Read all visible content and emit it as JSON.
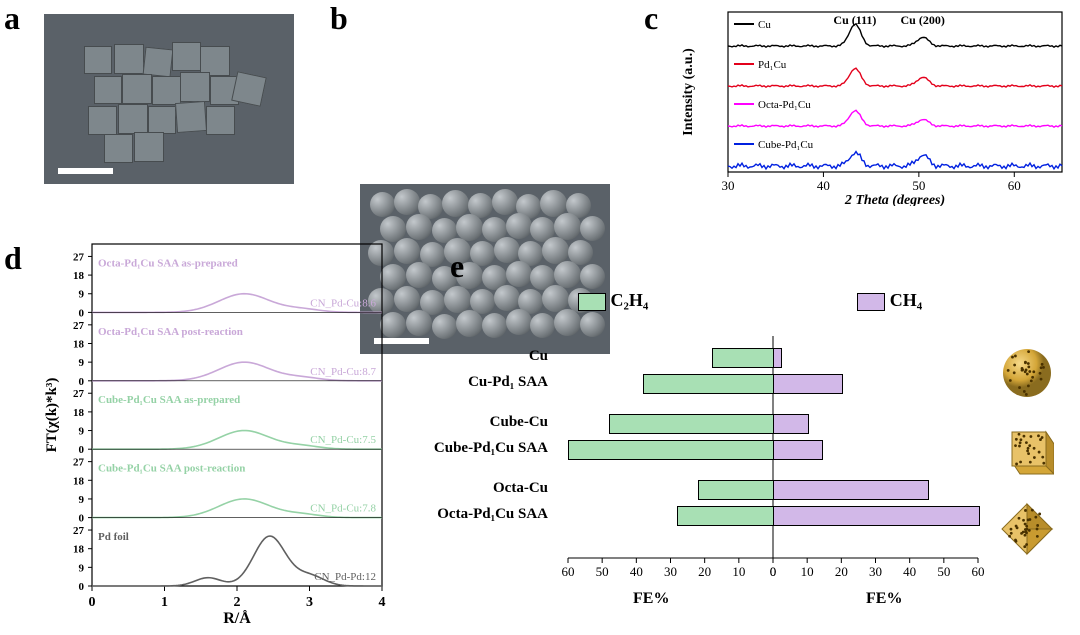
{
  "panels": {
    "a": {
      "label": "a"
    },
    "b": {
      "label": "b"
    },
    "c": {
      "label": "c",
      "chart": {
        "type": "line",
        "xlabel": "2 Theta (degrees)",
        "ylabel": "Intensity (a.u.)",
        "xlabel_style": "italic",
        "xlim": [
          30,
          65
        ],
        "xtick_step": 10,
        "peak_labels": [
          {
            "text": "Cu (111)",
            "x": 43.3
          },
          {
            "text": "Cu (200)",
            "x": 50.4
          }
        ],
        "series": [
          {
            "name": "Cu",
            "color": "#000000",
            "offset": 3,
            "peaks": [
              {
                "x": 43.3,
                "h": 10
              },
              {
                "x": 50.4,
                "h": 4
              }
            ]
          },
          {
            "name": "Pd₁Cu",
            "color": "#e3001b",
            "offset": 2,
            "peaks": [
              {
                "x": 43.3,
                "h": 8
              },
              {
                "x": 50.4,
                "h": 4
              }
            ]
          },
          {
            "name": "Octa-Pd₁Cu",
            "color": "#ff00ff",
            "offset": 1,
            "peaks": [
              {
                "x": 43.3,
                "h": 7
              },
              {
                "x": 50.4,
                "h": 3
              }
            ]
          },
          {
            "name": "Cube-Pd₁Cu",
            "color": "#0020e0",
            "offset": 0,
            "peaks": [
              {
                "x": 43.3,
                "h": 6
              },
              {
                "x": 50.4,
                "h": 5
              }
            ],
            "noisy": true
          }
        ],
        "background_color": "#ffffff",
        "axis_fontsize": 14
      }
    },
    "d": {
      "label": "d",
      "chart": {
        "type": "line",
        "xlabel": "R/Å",
        "ylabel": "FT(χ(k)*k³)",
        "xlim": [
          0,
          4
        ],
        "xtick_step": 1,
        "ytick_values": [
          0,
          9,
          18,
          27
        ],
        "n_stacks": 5,
        "label_fontsize": 11,
        "series": [
          {
            "name": "Octa-Pd₁Cu SAA as-prepared",
            "cn": "CN_Pd-Cu:8.6",
            "color": "#c9a8d8",
            "offset": 4
          },
          {
            "name": "Octa-Pd₁Cu SAA post-reaction",
            "cn": "CN_Pd-Cu:8.7",
            "color": "#c9a8d8",
            "offset": 3
          },
          {
            "name": "Cube-Pd₁Cu SAA as-prepared",
            "cn": "CN_Pd-Cu:7.5",
            "color": "#95d2a6",
            "offset": 2
          },
          {
            "name": "Cube-Pd₁Cu SAA post-reaction",
            "cn": "CN_Pd-Cu:7.8",
            "color": "#95d2a6",
            "offset": 1
          },
          {
            "name": "Pd foil",
            "cn": "CN_Pd-Pd:12",
            "color": "#606060",
            "offset": 0
          }
        ],
        "curve_peak_x": 2.1,
        "curve_peak_h": 9,
        "pdfoil_peak_x": 2.45,
        "pdfoil_peak_h": 24
      }
    },
    "e": {
      "label": "e",
      "chart": {
        "type": "bar",
        "legend": [
          {
            "text": "C₂H₄",
            "color": "#a8e0b4"
          },
          {
            "text": "CH₄",
            "color": "#d2b8e8"
          }
        ],
        "groups": [
          {
            "name": "Cu",
            "c2h4": 18,
            "ch4": 2,
            "shape": "sphere"
          },
          {
            "name": "Cu-Pd₁ SAA",
            "c2h4": 38,
            "ch4": 20,
            "shape": null
          },
          {
            "name": "Cube-Cu",
            "c2h4": 48,
            "ch4": 10,
            "shape": "cube"
          },
          {
            "name": "Cube-Pd₁Cu SAA",
            "c2h4": 60,
            "ch4": 14,
            "shape": null
          },
          {
            "name": "Octa-Cu",
            "c2h4": 22,
            "ch4": 45,
            "shape": "octa"
          },
          {
            "name": "Octa-Pd₁Cu SAA",
            "c2h4": 28,
            "ch4": 60,
            "shape": null
          }
        ],
        "x_axis_left_label": "FE%",
        "x_axis_right_label": "FE%",
        "xlim": [
          60,
          60
        ],
        "xtick_step": 10,
        "c2h4_color": "#a8e0b4",
        "ch4_color": "#d2b8e8",
        "bar_border": "#000000",
        "row_gap": 26,
        "group_gap": 14
      }
    }
  }
}
